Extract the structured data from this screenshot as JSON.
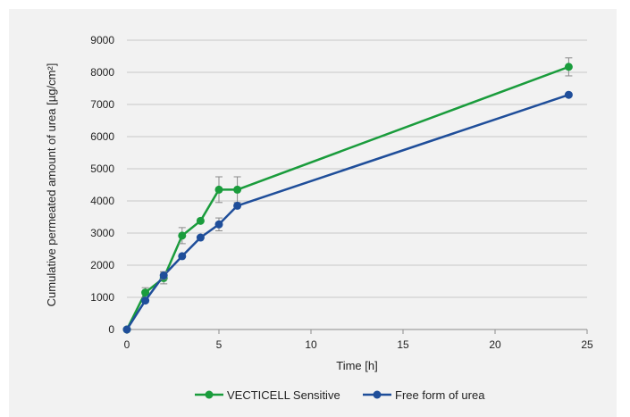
{
  "chart_data": {
    "type": "line",
    "title": "",
    "xlabel": "Time [h]",
    "ylabel": "Cumulative permeated amount of urea [µg/cm²]",
    "xlim": [
      0,
      25
    ],
    "ylim": [
      0,
      9000
    ],
    "xticks": [
      0,
      5,
      10,
      15,
      20,
      25
    ],
    "yticks": [
      0,
      1000,
      2000,
      3000,
      4000,
      5000,
      6000,
      7000,
      8000,
      9000
    ],
    "grid": true,
    "legend": "bottom",
    "series": [
      {
        "name": "VECTICELL Sensitive",
        "color": "#1a9c3c",
        "x": [
          0,
          1,
          2,
          3,
          4,
          5,
          6,
          24
        ],
        "y": [
          0,
          1150,
          1600,
          2920,
          3380,
          4350,
          4350,
          8170
        ],
        "error": [
          0,
          150,
          180,
          250,
          0,
          400,
          400,
          280
        ]
      },
      {
        "name": "Free form of urea",
        "color": "#1f4e9a",
        "x": [
          0,
          1,
          2,
          3,
          4,
          5,
          6,
          24
        ],
        "y": [
          0,
          900,
          1680,
          2280,
          2860,
          3270,
          3850,
          7300
        ],
        "error": [
          0,
          0,
          120,
          0,
          0,
          200,
          0,
          0
        ]
      }
    ]
  }
}
